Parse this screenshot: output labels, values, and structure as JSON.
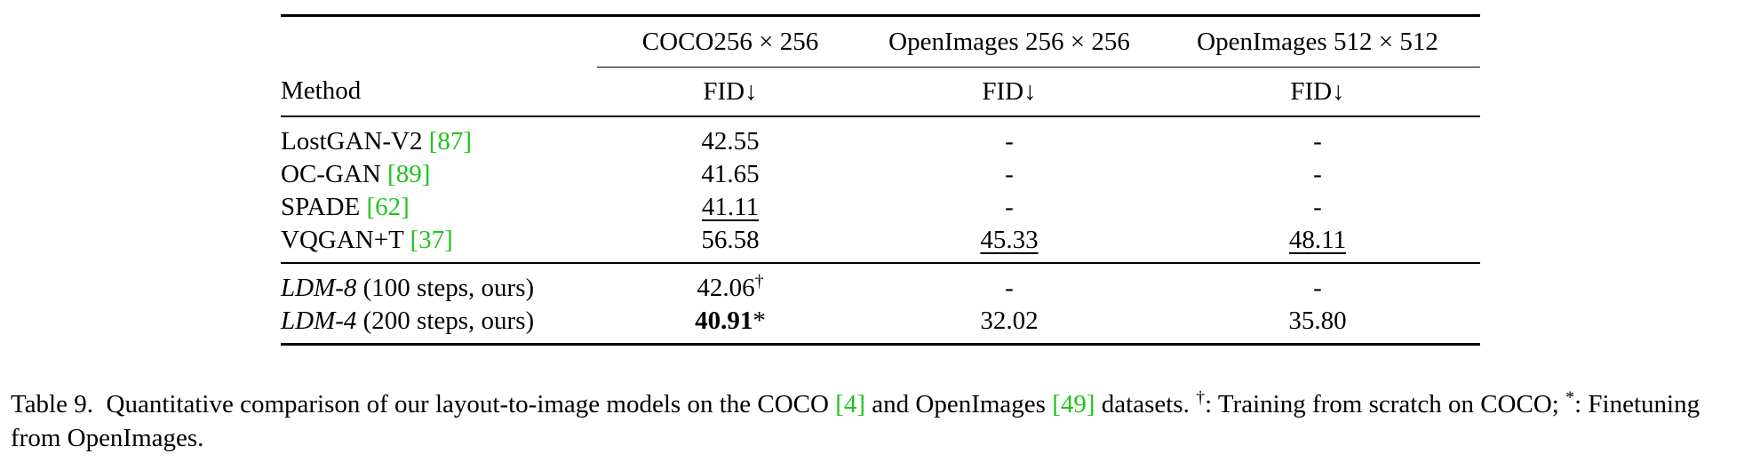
{
  "table": {
    "method_header": "Method",
    "datasets": [
      "COCO256 × 256",
      "OpenImages 256 × 256",
      "OpenImages 512 × 512"
    ],
    "metric": "FID↓",
    "group1": [
      {
        "name": "LostGAN-V2 ",
        "cite": "[87]",
        "v1": "42.55",
        "v2": "-",
        "v3": "-"
      },
      {
        "name": "OC-GAN ",
        "cite": "[89]",
        "v1": "41.65",
        "v2": "-",
        "v3": "-"
      },
      {
        "name": "SPADE ",
        "cite": "[62]",
        "v1": "41.11",
        "v2": "-",
        "v3": "-"
      },
      {
        "name": "VQGAN+T ",
        "cite": "[37]",
        "v1": "56.58",
        "v2": "45.33",
        "v3": "48.11"
      }
    ],
    "group2": [
      {
        "name": "LDM-8",
        "suffix": " (100 steps, ours)",
        "v1": "42.06",
        "v1_mark": "†",
        "v2": "-",
        "v3": "-"
      },
      {
        "name": "LDM-4",
        "suffix": " (200 steps, ours)",
        "v1": "40.91",
        "v1_mark": "*",
        "v2": "32.02",
        "v3": "35.80"
      }
    ]
  },
  "caption": {
    "label": "Table 9.",
    "text_a": "Quantitative comparison of our layout-to-image models on the COCO ",
    "cite_a": "[4]",
    "text_b": " and OpenImages ",
    "cite_b": "[49]",
    "text_c": " datasets. ",
    "mark_a": "†",
    "text_d": ": Training from scratch on COCO; ",
    "mark_b": "*",
    "text_e": ": Finetuning from OpenImages."
  }
}
